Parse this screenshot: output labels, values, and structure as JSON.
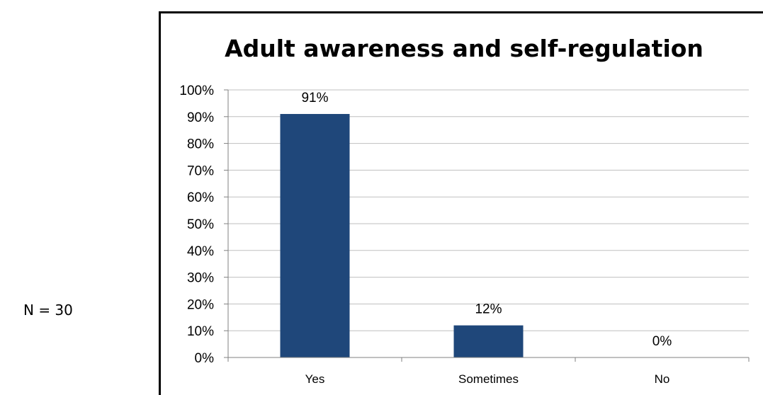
{
  "note": "N = 30",
  "chart_data": {
    "type": "bar",
    "title": "Adult awareness and self-regulation",
    "categories": [
      "Yes",
      "Sometimes",
      "No"
    ],
    "values": [
      91,
      12,
      0
    ],
    "data_labels": [
      "91%",
      "12%",
      "0%"
    ],
    "ylim": [
      0,
      100
    ],
    "yticks": [
      "0%",
      "10%",
      "20%",
      "30%",
      "40%",
      "50%",
      "60%",
      "70%",
      "80%",
      "90%",
      "100%"
    ],
    "xlabel": "",
    "ylabel": "",
    "grid": true,
    "legend": "none",
    "bar_color": "#1F477A",
    "grid_color": "#BFBFBF",
    "axis_color": "#808080"
  }
}
